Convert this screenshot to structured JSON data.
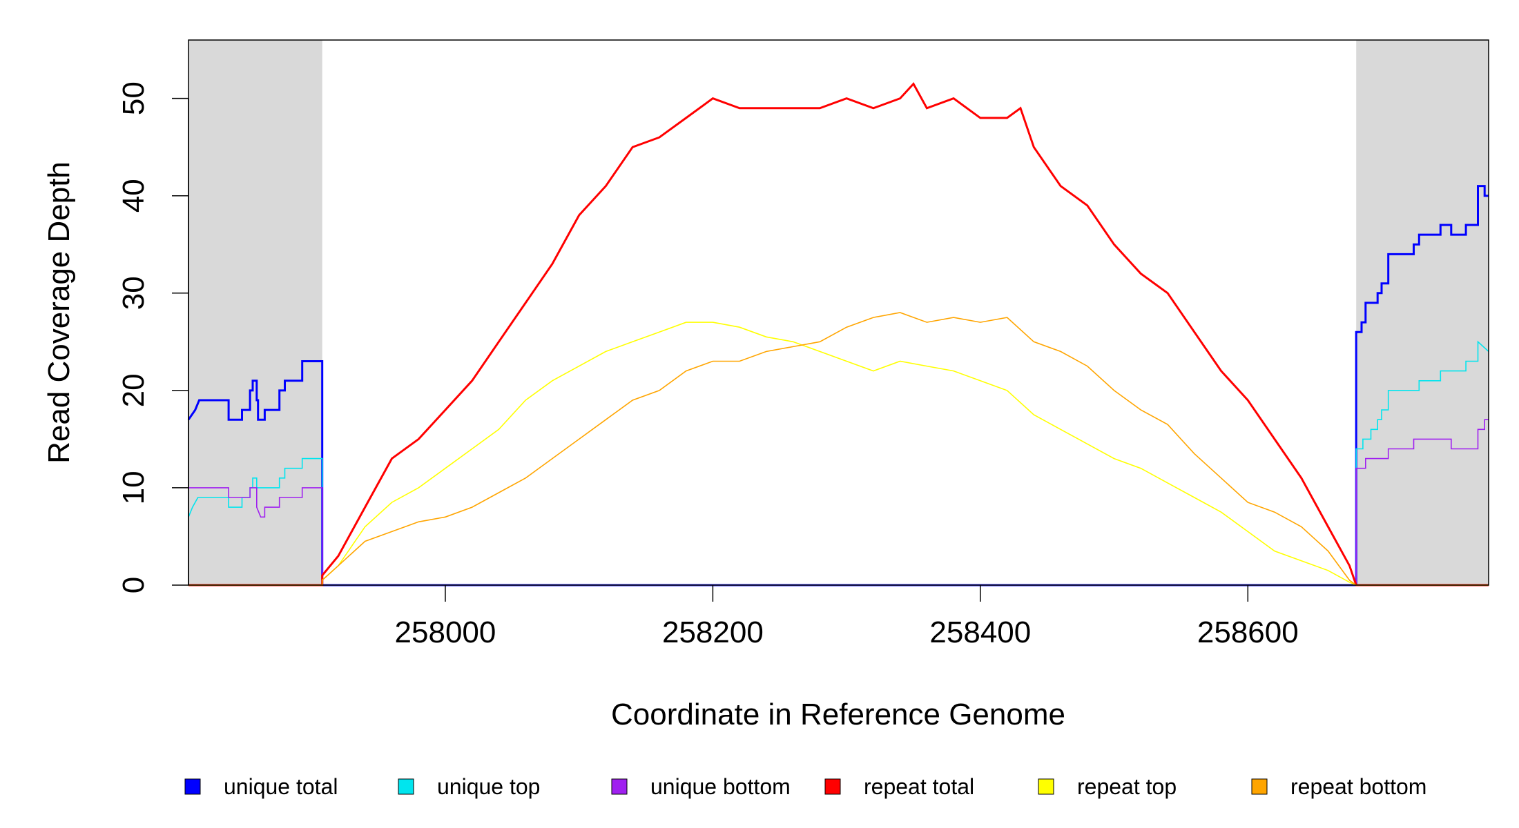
{
  "chart_data": {
    "type": "line",
    "title": "",
    "xlabel": "Coordinate in Reference Genome",
    "ylabel": "Read Coverage Depth",
    "xlim": [
      257808,
      258780
    ],
    "ylim": [
      0,
      56
    ],
    "xticks": [
      258000,
      258200,
      258400,
      258600
    ],
    "xtick_labels": [
      "258000",
      "258200",
      "258400",
      "258600"
    ],
    "yticks": [
      0,
      10,
      20,
      30,
      40,
      50
    ],
    "ytick_labels": [
      "0",
      "10",
      "20",
      "30",
      "40",
      "50"
    ],
    "grid": false,
    "legend_position": "bottom",
    "shaded_regions": [
      {
        "x0": 257808,
        "x1": 257908,
        "color": "#d9d9d9"
      },
      {
        "x0": 258681,
        "x1": 258780,
        "color": "#d9d9d9"
      }
    ],
    "series": [
      {
        "name": "unique total",
        "color": "#0000ff",
        "width": 3,
        "points": [
          [
            257808,
            17
          ],
          [
            257813,
            18
          ],
          [
            257816,
            19
          ],
          [
            257838,
            19
          ],
          [
            257838,
            17
          ],
          [
            257848,
            17
          ],
          [
            257848,
            18
          ],
          [
            257854,
            18
          ],
          [
            257854,
            20
          ],
          [
            257856,
            20
          ],
          [
            257856,
            21
          ],
          [
            257859,
            21
          ],
          [
            257859,
            19
          ],
          [
            257860,
            19
          ],
          [
            257860,
            17
          ],
          [
            257865,
            17
          ],
          [
            257865,
            18
          ],
          [
            257876,
            18
          ],
          [
            257876,
            20
          ],
          [
            257880,
            20
          ],
          [
            257880,
            21
          ],
          [
            257893,
            21
          ],
          [
            257893,
            23
          ],
          [
            257908,
            23
          ],
          [
            257908,
            0
          ],
          [
            258681,
            0
          ],
          [
            258681,
            26
          ],
          [
            258685,
            26
          ],
          [
            258685,
            27
          ],
          [
            258688,
            27
          ],
          [
            258688,
            29
          ],
          [
            258697,
            29
          ],
          [
            258697,
            30
          ],
          [
            258700,
            30
          ],
          [
            258700,
            31
          ],
          [
            258705,
            31
          ],
          [
            258705,
            34
          ],
          [
            258724,
            34
          ],
          [
            258724,
            35
          ],
          [
            258728,
            35
          ],
          [
            258728,
            36
          ],
          [
            258744,
            36
          ],
          [
            258744,
            37
          ],
          [
            258752,
            37
          ],
          [
            258752,
            36
          ],
          [
            258763,
            36
          ],
          [
            258763,
            37
          ],
          [
            258772,
            37
          ],
          [
            258772,
            41
          ],
          [
            258777,
            41
          ],
          [
            258777,
            40
          ],
          [
            258780,
            40
          ]
        ]
      },
      {
        "name": "unique top",
        "color": "#00e5ee",
        "width": 1.6,
        "points": [
          [
            257808,
            7
          ],
          [
            257811,
            8
          ],
          [
            257815,
            9
          ],
          [
            257838,
            9
          ],
          [
            257838,
            8
          ],
          [
            257848,
            8
          ],
          [
            257848,
            9
          ],
          [
            257854,
            9
          ],
          [
            257854,
            10
          ],
          [
            257856,
            10
          ],
          [
            257856,
            11
          ],
          [
            257859,
            11
          ],
          [
            257859,
            10
          ],
          [
            257876,
            10
          ],
          [
            257876,
            11
          ],
          [
            257880,
            11
          ],
          [
            257880,
            12
          ],
          [
            257893,
            12
          ],
          [
            257893,
            13
          ],
          [
            257908,
            13
          ],
          [
            257908,
            0
          ],
          [
            258681,
            0
          ],
          [
            258681,
            14
          ],
          [
            258686,
            14
          ],
          [
            258686,
            15
          ],
          [
            258692,
            15
          ],
          [
            258692,
            16
          ],
          [
            258697,
            16
          ],
          [
            258697,
            17
          ],
          [
            258700,
            17
          ],
          [
            258700,
            18
          ],
          [
            258705,
            18
          ],
          [
            258705,
            20
          ],
          [
            258728,
            20
          ],
          [
            258728,
            21
          ],
          [
            258744,
            21
          ],
          [
            258744,
            22
          ],
          [
            258763,
            22
          ],
          [
            258763,
            23
          ],
          [
            258772,
            23
          ],
          [
            258772,
            25
          ],
          [
            258780,
            24
          ]
        ]
      },
      {
        "name": "unique bottom",
        "color": "#a020f0",
        "width": 1.6,
        "points": [
          [
            257808,
            10
          ],
          [
            257838,
            10
          ],
          [
            257838,
            9
          ],
          [
            257854,
            9
          ],
          [
            257854,
            10
          ],
          [
            257859,
            10
          ],
          [
            257859,
            8
          ],
          [
            257862,
            7
          ],
          [
            257865,
            7
          ],
          [
            257865,
            8
          ],
          [
            257876,
            8
          ],
          [
            257876,
            9
          ],
          [
            257893,
            9
          ],
          [
            257893,
            10
          ],
          [
            257908,
            10
          ],
          [
            257908,
            0
          ],
          [
            258681,
            0
          ],
          [
            258681,
            12
          ],
          [
            258688,
            12
          ],
          [
            258688,
            13
          ],
          [
            258705,
            13
          ],
          [
            258705,
            14
          ],
          [
            258724,
            14
          ],
          [
            258724,
            15
          ],
          [
            258752,
            15
          ],
          [
            258752,
            14
          ],
          [
            258772,
            14
          ],
          [
            258772,
            16
          ],
          [
            258777,
            16
          ],
          [
            258777,
            17
          ],
          [
            258780,
            17
          ]
        ]
      },
      {
        "name": "repeat total",
        "color": "#ff0000",
        "width": 3,
        "points": [
          [
            257808,
            0
          ],
          [
            257908,
            0
          ],
          [
            257908,
            1
          ],
          [
            257920,
            3
          ],
          [
            257940,
            8
          ],
          [
            257960,
            13
          ],
          [
            257980,
            15
          ],
          [
            258000,
            18
          ],
          [
            258020,
            21
          ],
          [
            258040,
            25
          ],
          [
            258060,
            29
          ],
          [
            258080,
            33
          ],
          [
            258100,
            38
          ],
          [
            258120,
            41
          ],
          [
            258140,
            45
          ],
          [
            258160,
            46
          ],
          [
            258180,
            48
          ],
          [
            258200,
            50
          ],
          [
            258220,
            49
          ],
          [
            258240,
            49
          ],
          [
            258260,
            49
          ],
          [
            258280,
            49
          ],
          [
            258300,
            50
          ],
          [
            258320,
            49
          ],
          [
            258340,
            50
          ],
          [
            258350,
            51.5
          ],
          [
            258360,
            49
          ],
          [
            258380,
            50
          ],
          [
            258400,
            48
          ],
          [
            258420,
            48
          ],
          [
            258430,
            49
          ],
          [
            258440,
            45
          ],
          [
            258460,
            41
          ],
          [
            258480,
            39
          ],
          [
            258500,
            35
          ],
          [
            258520,
            32
          ],
          [
            258540,
            30
          ],
          [
            258560,
            26
          ],
          [
            258580,
            22
          ],
          [
            258600,
            19
          ],
          [
            258620,
            15
          ],
          [
            258640,
            11
          ],
          [
            258660,
            6
          ],
          [
            258676,
            2
          ],
          [
            258681,
            0
          ],
          [
            258780,
            0
          ]
        ]
      },
      {
        "name": "repeat top",
        "color": "#ffff00",
        "width": 1.6,
        "points": [
          [
            257808,
            0
          ],
          [
            257908,
            0
          ],
          [
            257908,
            0.5
          ],
          [
            257920,
            2
          ],
          [
            257940,
            6
          ],
          [
            257960,
            8.5
          ],
          [
            257980,
            10
          ],
          [
            258000,
            12
          ],
          [
            258020,
            14
          ],
          [
            258040,
            16
          ],
          [
            258060,
            19
          ],
          [
            258080,
            21
          ],
          [
            258100,
            22.5
          ],
          [
            258120,
            24
          ],
          [
            258140,
            25
          ],
          [
            258160,
            26
          ],
          [
            258180,
            27
          ],
          [
            258200,
            27
          ],
          [
            258220,
            26.5
          ],
          [
            258240,
            25.5
          ],
          [
            258260,
            25
          ],
          [
            258280,
            24
          ],
          [
            258300,
            23
          ],
          [
            258320,
            22
          ],
          [
            258340,
            23
          ],
          [
            258360,
            22.5
          ],
          [
            258380,
            22
          ],
          [
            258400,
            21
          ],
          [
            258420,
            20
          ],
          [
            258440,
            17.5
          ],
          [
            258460,
            16
          ],
          [
            258480,
            14.5
          ],
          [
            258500,
            13
          ],
          [
            258520,
            12
          ],
          [
            258540,
            10.5
          ],
          [
            258560,
            9
          ],
          [
            258580,
            7.5
          ],
          [
            258600,
            5.5
          ],
          [
            258620,
            3.5
          ],
          [
            258640,
            2.5
          ],
          [
            258660,
            1.5
          ],
          [
            258676,
            0.3
          ],
          [
            258681,
            0
          ],
          [
            258780,
            0
          ]
        ]
      },
      {
        "name": "repeat bottom",
        "color": "#ffa500",
        "width": 1.6,
        "points": [
          [
            257808,
            0
          ],
          [
            257908,
            0
          ],
          [
            257908,
            0.5
          ],
          [
            257920,
            2
          ],
          [
            257940,
            4.5
          ],
          [
            257960,
            5.5
          ],
          [
            257980,
            6.5
          ],
          [
            258000,
            7
          ],
          [
            258020,
            8
          ],
          [
            258040,
            9.5
          ],
          [
            258060,
            11
          ],
          [
            258080,
            13
          ],
          [
            258100,
            15
          ],
          [
            258120,
            17
          ],
          [
            258140,
            19
          ],
          [
            258160,
            20
          ],
          [
            258180,
            22
          ],
          [
            258200,
            23
          ],
          [
            258220,
            23
          ],
          [
            258240,
            24
          ],
          [
            258260,
            24.5
          ],
          [
            258280,
            25
          ],
          [
            258300,
            26.5
          ],
          [
            258320,
            27.5
          ],
          [
            258340,
            28
          ],
          [
            258360,
            27
          ],
          [
            258380,
            27.5
          ],
          [
            258400,
            27
          ],
          [
            258420,
            27.5
          ],
          [
            258440,
            25
          ],
          [
            258460,
            24
          ],
          [
            258480,
            22.5
          ],
          [
            258500,
            20
          ],
          [
            258520,
            18
          ],
          [
            258540,
            16.5
          ],
          [
            258560,
            13.5
          ],
          [
            258580,
            11
          ],
          [
            258600,
            8.5
          ],
          [
            258620,
            7.5
          ],
          [
            258640,
            6
          ],
          [
            258660,
            3.5
          ],
          [
            258676,
            0.5
          ],
          [
            258681,
            0
          ],
          [
            258780,
            0
          ]
        ]
      }
    ]
  }
}
